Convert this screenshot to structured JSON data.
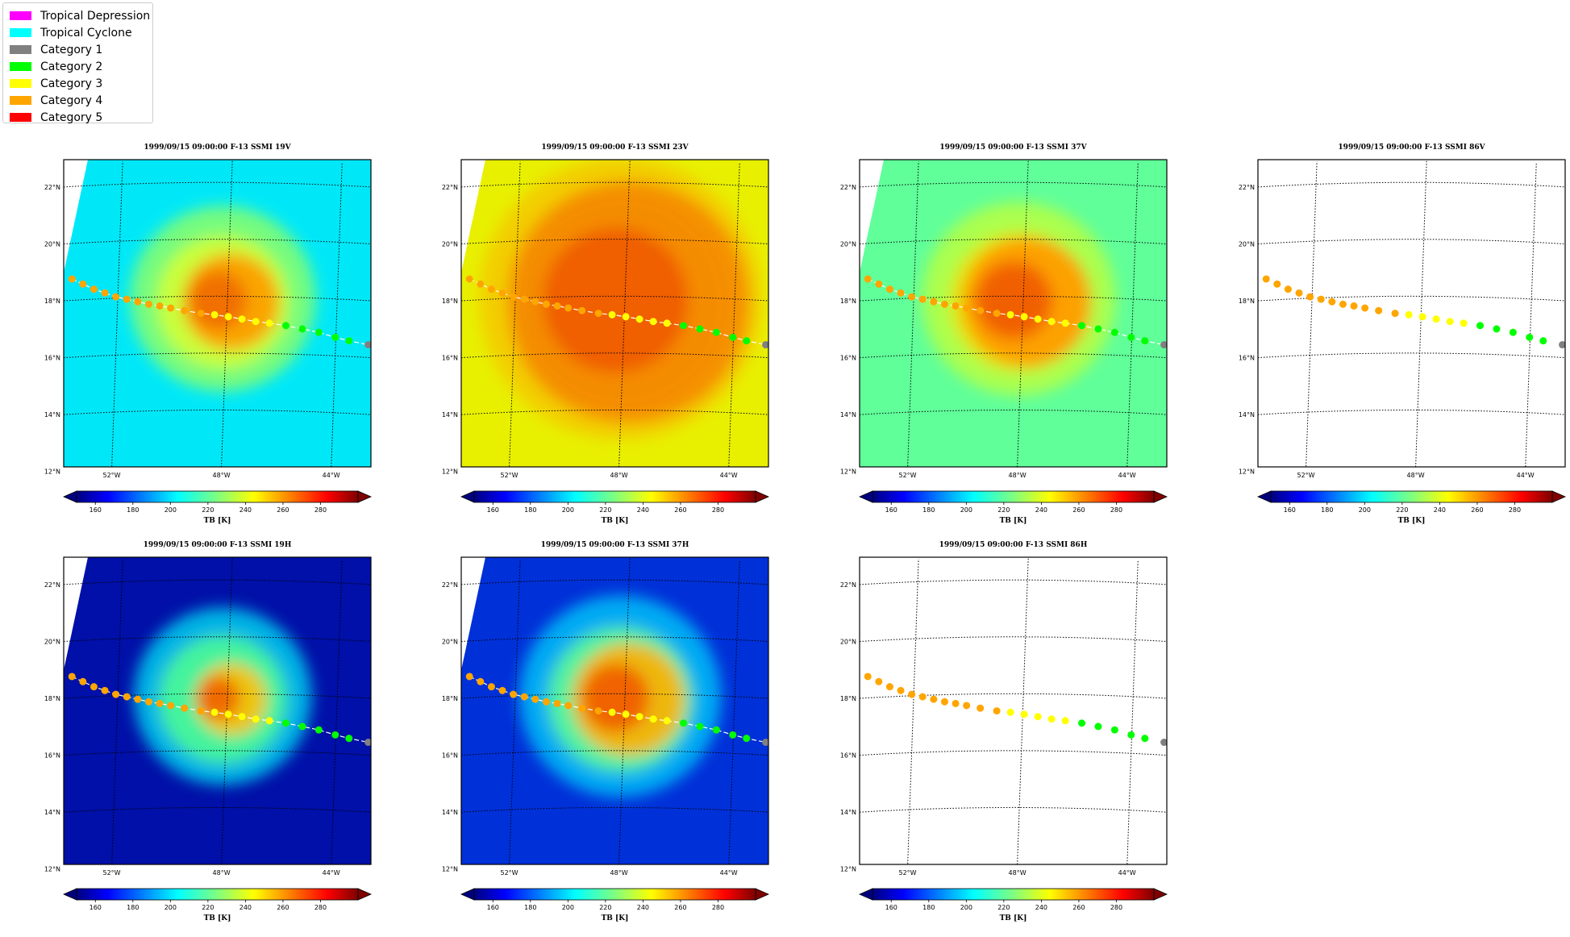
{
  "legend": {
    "items": [
      {
        "label": "Tropical Depression",
        "color": "#ff00ff"
      },
      {
        "label": "Tropical Cyclone",
        "color": "#00ffff"
      },
      {
        "label": "Category 1",
        "color": "#808080"
      },
      {
        "label": "Category 2",
        "color": "#00ff00"
      },
      {
        "label": "Category 3",
        "color": "#ffff00"
      },
      {
        "label": "Category 4",
        "color": "#ffa500"
      },
      {
        "label": "Category 5",
        "color": "#ff0000"
      }
    ]
  },
  "panels": [
    {
      "title": "1999/09/15 09:00:00  F-13 SSMI 19V",
      "field": "19V",
      "background": "#00e8f8"
    },
    {
      "title": "1999/09/15 09:00:00  F-13 SSMI 23V",
      "field": "23V",
      "background": "#e8f000"
    },
    {
      "title": "1999/09/15 09:00:00  F-13 SSMI 37V",
      "field": "37V",
      "background": "#60ff9a"
    },
    {
      "title": "1999/09/15 09:00:00  F-13 SSMI 86V",
      "field": "86V",
      "background": "#ffffff"
    },
    {
      "title": "1999/09/15 09:00:00  F-13 SSMI 19H",
      "field": "19H",
      "background": "#0010a8"
    },
    {
      "title": "1999/09/15 09:00:00  F-13 SSMI 37H",
      "field": "37H",
      "background": "#0030d8"
    },
    {
      "title": "1999/09/15 09:00:00  F-13 SSMI 86H",
      "field": "86H",
      "background": "#ffffff"
    }
  ],
  "map_axes": {
    "lat_labels": [
      "12°N",
      "14°N",
      "16°N",
      "18°N",
      "20°N",
      "22°N"
    ],
    "lon_labels": [
      "52°W",
      "48°W",
      "44°W"
    ]
  },
  "colorbar": {
    "label": "TB [K]",
    "ticks": [
      "160",
      "180",
      "200",
      "220",
      "240",
      "260",
      "280"
    ],
    "range": [
      150,
      300
    ],
    "colormap": "jet"
  },
  "track": {
    "points": [
      {
        "lon": -53.7,
        "lat": 18.75,
        "category": "Category 4"
      },
      {
        "lon": -53.3,
        "lat": 18.55,
        "category": "Category 4"
      },
      {
        "lon": -52.9,
        "lat": 18.35,
        "category": "Category 4"
      },
      {
        "lon": -52.5,
        "lat": 18.2,
        "category": "Category 4"
      },
      {
        "lon": -52.1,
        "lat": 18.05,
        "category": "Category 4"
      },
      {
        "lon": -51.7,
        "lat": 17.95,
        "category": "Category 4"
      },
      {
        "lon": -51.3,
        "lat": 17.85,
        "category": "Category 4"
      },
      {
        "lon": -50.9,
        "lat": 17.75,
        "category": "Category 4"
      },
      {
        "lon": -50.5,
        "lat": 17.68,
        "category": "Category 4"
      },
      {
        "lon": -50.1,
        "lat": 17.6,
        "category": "Category 4"
      },
      {
        "lon": -49.6,
        "lat": 17.5,
        "category": "Category 4"
      },
      {
        "lon": -49.0,
        "lat": 17.4,
        "category": "Category 4"
      },
      {
        "lon": -48.5,
        "lat": 17.35,
        "category": "Category 3"
      },
      {
        "lon": -48.0,
        "lat": 17.28,
        "category": "Category 3"
      },
      {
        "lon": -47.5,
        "lat": 17.2,
        "category": "Category 3"
      },
      {
        "lon": -47.0,
        "lat": 17.12,
        "category": "Category 3"
      },
      {
        "lon": -46.5,
        "lat": 17.07,
        "category": "Category 3"
      },
      {
        "lon": -45.9,
        "lat": 17.0,
        "category": "Category 2"
      },
      {
        "lon": -45.3,
        "lat": 16.9,
        "category": "Category 2"
      },
      {
        "lon": -44.7,
        "lat": 16.8,
        "category": "Category 2"
      },
      {
        "lon": -44.1,
        "lat": 16.65,
        "category": "Category 2"
      },
      {
        "lon": -43.6,
        "lat": 16.55,
        "category": "Category 2"
      },
      {
        "lon": -42.9,
        "lat": 16.45,
        "category": "Category 1"
      }
    ]
  }
}
